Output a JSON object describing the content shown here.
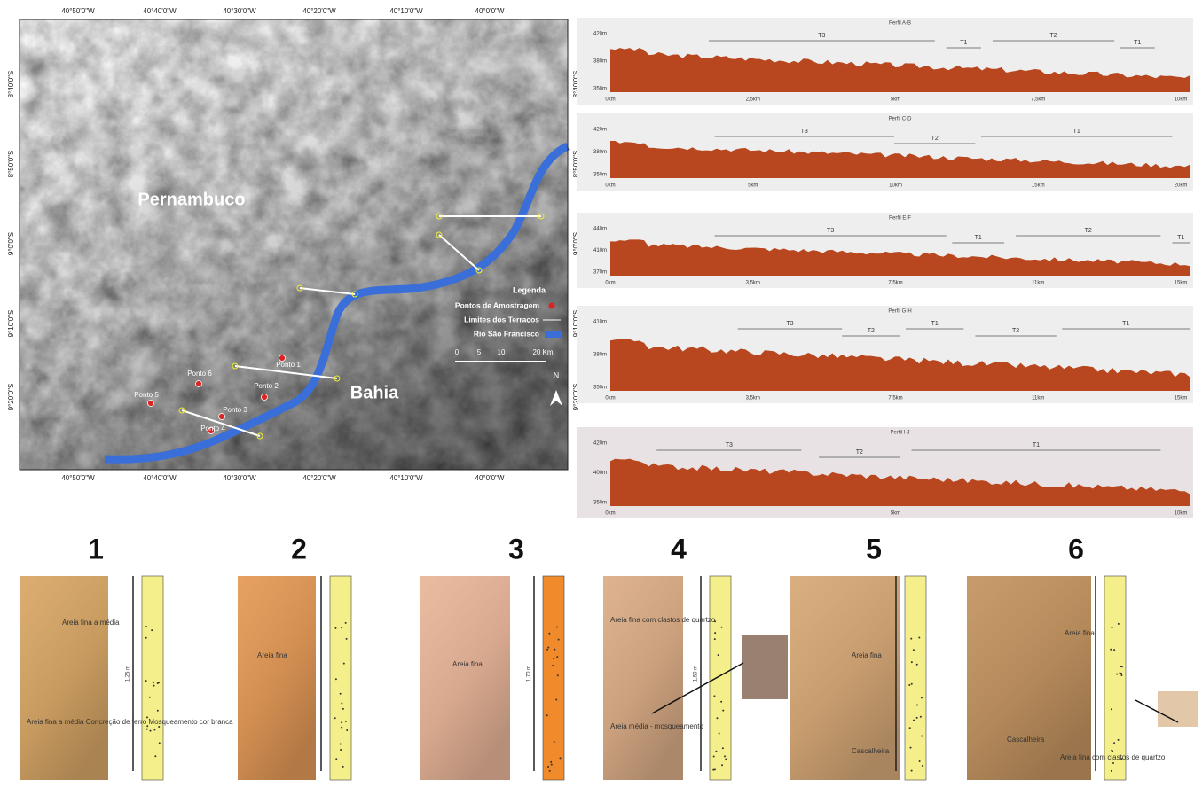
{
  "map": {
    "lat_labels": [
      "8°40'0\"S",
      "8°50'0\"S",
      "9°0'0\"S",
      "9°10'0\"S",
      "9°20'0\"S"
    ],
    "lon_labels": [
      "40°50'0\"W",
      "40°40'0\"W",
      "40°30'0\"W",
      "40°20'0\"W",
      "40°10'0\"W",
      "40°0'0\"W"
    ],
    "places": [
      "Pernambuco",
      "Bahia"
    ],
    "points": [
      "Ponto 1",
      "Ponto 2",
      "Ponto 3",
      "Ponto 4",
      "Ponto 5",
      "Ponto 6"
    ],
    "legend": {
      "title": "Legenda",
      "items": [
        "Pontos de Amostragem",
        "Limites dos Terraços",
        "Rio São Francisco"
      ]
    },
    "scale": [
      "0",
      "5",
      "10",
      "20 Km"
    ],
    "north": "N"
  },
  "profiles": [
    {
      "title": "Perfil A-B",
      "yticks": [
        "420m",
        "380m",
        "350m"
      ],
      "xticks": [
        "0km",
        "2,5km",
        "5km",
        "7,5km",
        "10km"
      ],
      "terraces": [
        "T3",
        "T1",
        "T2",
        "T1"
      ]
    },
    {
      "title": "Perfil C-D",
      "yticks": [
        "420m",
        "380m",
        "350m"
      ],
      "xticks": [
        "0km",
        "5km",
        "10km",
        "15km",
        "20km"
      ],
      "terraces": [
        "T3",
        "T2",
        "T1"
      ]
    },
    {
      "title": "Perfil E-F",
      "yticks": [
        "440m",
        "410m",
        "370m"
      ],
      "xticks": [
        "0km",
        "3,5km",
        "7,5km",
        "11km",
        "15km"
      ],
      "terraces": [
        "T3",
        "T1",
        "T2",
        "T1"
      ]
    },
    {
      "title": "Perfil G-H",
      "yticks": [
        "410m",
        "380m",
        "350m"
      ],
      "xticks": [
        "0km",
        "3,5km",
        "7,5km",
        "11km",
        "15km"
      ],
      "terraces": [
        "T3",
        "T2",
        "T1",
        "T2",
        "T1"
      ]
    },
    {
      "title": "Perfil I-J",
      "yticks": [
        "420m",
        "400m",
        "350m"
      ],
      "xticks": [
        "0km",
        "5km",
        "10km"
      ],
      "terraces": [
        "T3",
        "T2",
        "T1"
      ]
    }
  ],
  "panels": [
    {
      "number": "1",
      "notes": [
        "Areia fina a média",
        "Areia fina a média Concreção de ferro Mosqueamento cor branca"
      ],
      "depth": "1,25 m"
    },
    {
      "number": "2",
      "notes": [
        "Areia fina"
      ]
    },
    {
      "number": "3",
      "notes": [
        "Areia fina"
      ],
      "depth": "1,70 m"
    },
    {
      "number": "4",
      "notes": [
        "Areia fina com clastos de quartzo",
        "Areia média - mosqueamento"
      ],
      "depth": "1,50 m"
    },
    {
      "number": "5",
      "notes": [
        "Areia fina",
        "Cascalheira"
      ]
    },
    {
      "number": "6",
      "notes": [
        "Areia fina",
        "Cascalheira",
        "Areia fina com clastos de quartzo"
      ]
    }
  ]
}
